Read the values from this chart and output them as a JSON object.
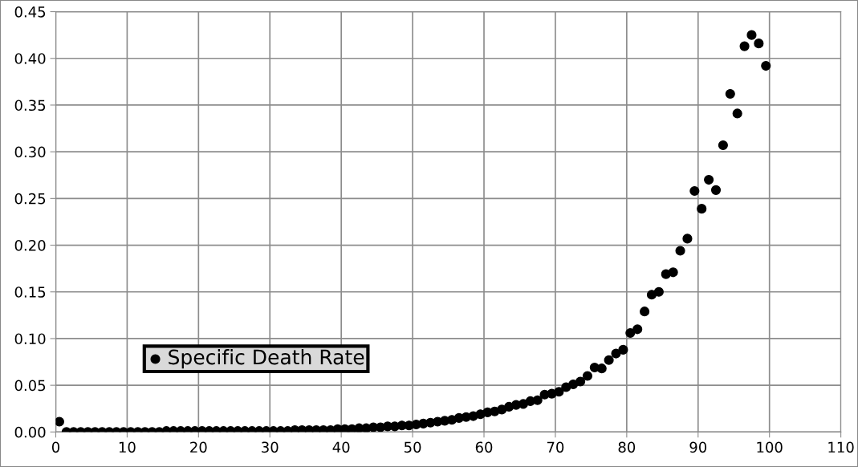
{
  "chart_data": {
    "type": "scatter",
    "xlim": [
      0,
      110
    ],
    "xticks": [
      0,
      10,
      20,
      30,
      40,
      50,
      60,
      70,
      80,
      90,
      100,
      110
    ],
    "ylim": [
      0,
      0.45
    ],
    "yticks": [
      {
        "value": 0,
        "label": "0.00"
      },
      {
        "value": 0.05,
        "label": "0.05"
      },
      {
        "value": 0.1,
        "label": "0.10"
      },
      {
        "value": 0.15,
        "label": "0.15"
      },
      {
        "value": 0.2,
        "label": "0.20"
      },
      {
        "value": 0.25,
        "label": "0.25"
      },
      {
        "value": 0.3,
        "label": "0.30"
      },
      {
        "value": 0.35,
        "label": "0.35"
      },
      {
        "value": 0.4,
        "label": "0.40"
      },
      {
        "value": 0.45,
        "label": "0.45"
      }
    ],
    "grid": true,
    "legend": "bottom left",
    "marker": "circle",
    "x": [
      0.5,
      1.5,
      2.5,
      3.5,
      4.5,
      5.5,
      6.5,
      7.5,
      8.5,
      9.5,
      10.5,
      11.5,
      12.5,
      13.5,
      14.5,
      15.5,
      16.5,
      17.5,
      18.5,
      19.5,
      20.5,
      21.5,
      22.5,
      23.5,
      24.5,
      25.5,
      26.5,
      27.5,
      28.5,
      29.5,
      30.5,
      31.5,
      32.5,
      33.5,
      34.5,
      35.5,
      36.5,
      37.5,
      38.5,
      39.5,
      40.5,
      41.5,
      42.5,
      43.5,
      44.5,
      45.5,
      46.5,
      47.5,
      48.5,
      49.5,
      50.5,
      51.5,
      52.5,
      53.5,
      54.5,
      55.5,
      56.5,
      57.5,
      58.5,
      59.5,
      60.5,
      61.5,
      62.5,
      63.5,
      64.5,
      65.5,
      66.5,
      67.5,
      68.5,
      69.5,
      70.5,
      71.5,
      72.5,
      73.5,
      74.5,
      75.5,
      76.5,
      77.5,
      78.5,
      79.5,
      80.5,
      81.5,
      82.5,
      83.5,
      84.5,
      85.5,
      86.5,
      87.5,
      88.5,
      89.5,
      90.5,
      91.5,
      92.5,
      93.5,
      94.5,
      95.5,
      96.5,
      97.5,
      98.5,
      99.5
    ],
    "series": [
      {
        "name": "Specific Death Rate",
        "color": "#000000",
        "values": [
          0.011,
          0.0,
          0.0,
          0.0,
          0.0,
          0.0,
          0.0,
          0.0,
          0.0,
          0.0,
          0.0,
          0.0,
          0.0,
          0.0,
          0.0,
          0.001,
          0.001,
          0.001,
          0.001,
          0.001,
          0.001,
          0.001,
          0.001,
          0.001,
          0.001,
          0.001,
          0.001,
          0.001,
          0.001,
          0.001,
          0.001,
          0.001,
          0.001,
          0.002,
          0.002,
          0.002,
          0.002,
          0.002,
          0.002,
          0.003,
          0.003,
          0.003,
          0.004,
          0.004,
          0.005,
          0.005,
          0.006,
          0.006,
          0.007,
          0.007,
          0.008,
          0.009,
          0.01,
          0.011,
          0.012,
          0.013,
          0.015,
          0.016,
          0.017,
          0.019,
          0.021,
          0.022,
          0.024,
          0.027,
          0.029,
          0.03,
          0.033,
          0.034,
          0.04,
          0.041,
          0.043,
          0.048,
          0.051,
          0.054,
          0.06,
          0.069,
          0.068,
          0.077,
          0.084,
          0.088,
          0.106,
          0.11,
          0.129,
          0.147,
          0.15,
          0.169,
          0.171,
          0.194,
          0.207,
          0.258,
          0.239,
          0.27,
          0.259,
          0.307,
          0.362,
          0.341,
          0.413,
          0.425,
          0.416,
          0.392
        ]
      }
    ]
  }
}
